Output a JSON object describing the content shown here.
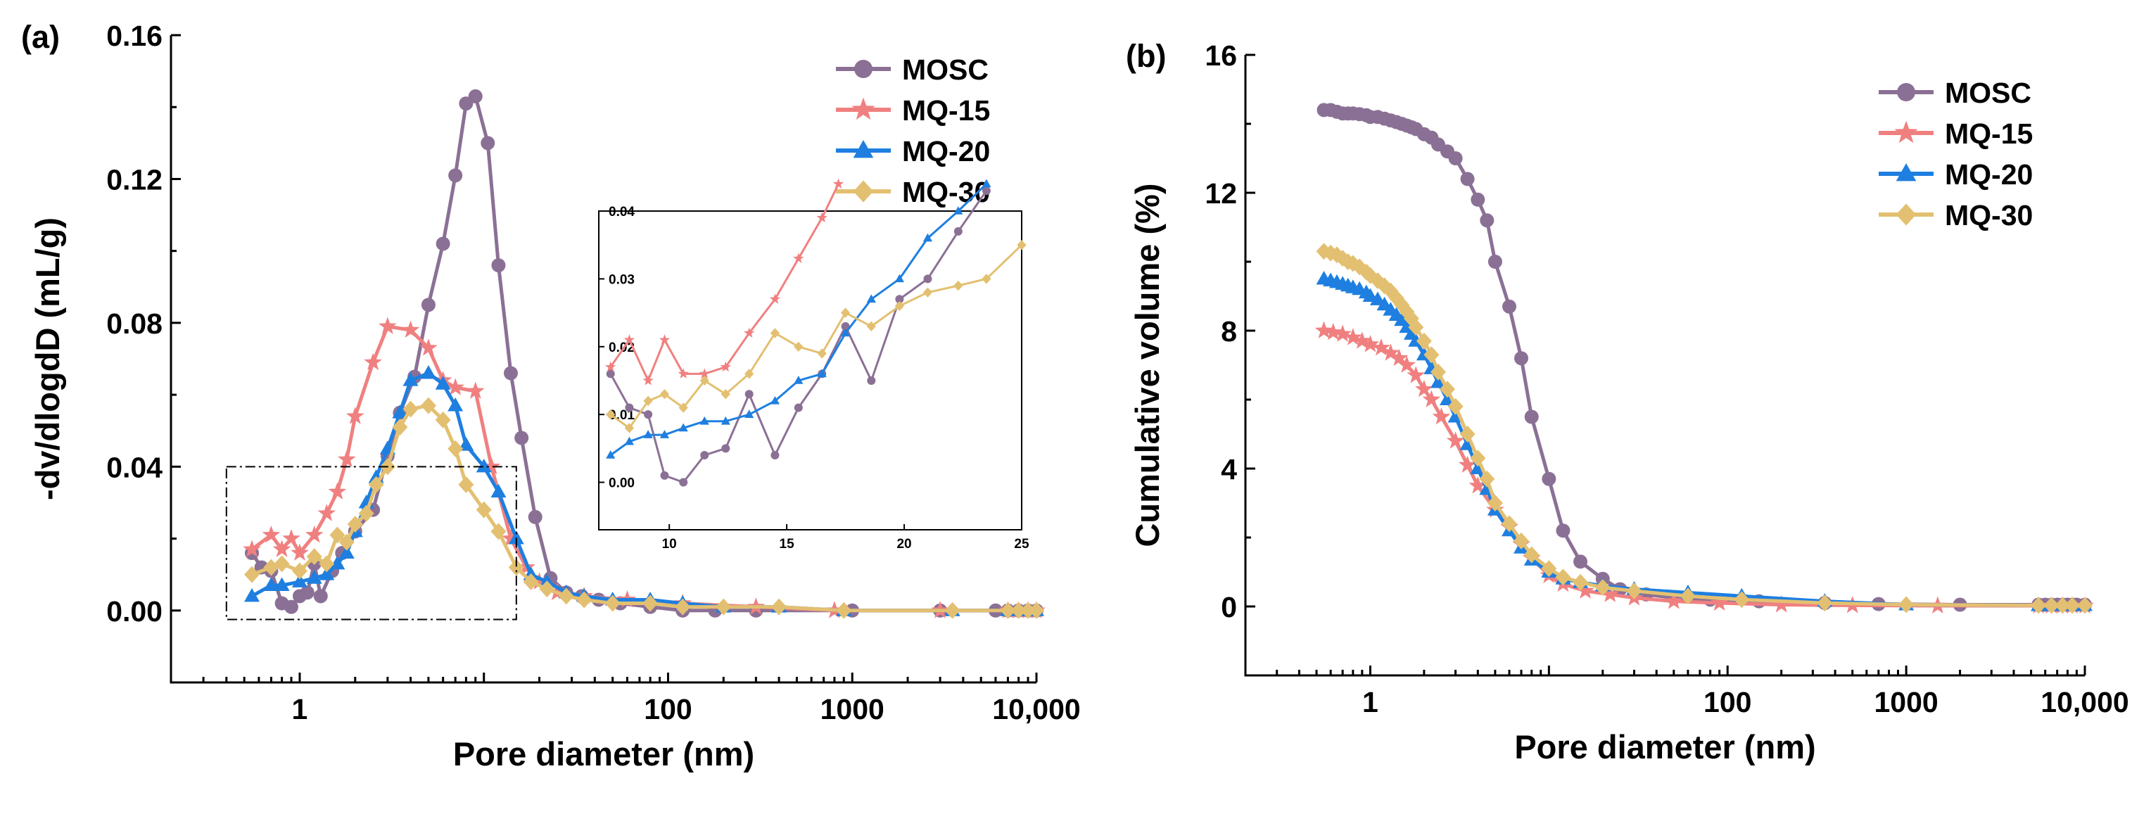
{
  "chart_data": [
    {
      "type": "line",
      "panel_label": "(a)",
      "xlabel": "Pore diameter (nm)",
      "ylabel": "-dv/dlogdD (mL/g)",
      "xscale": "log",
      "xlim": [
        0.2,
        10000
      ],
      "ylim": [
        -0.02,
        0.16
      ],
      "xticks": [
        1,
        100,
        1000,
        10000
      ],
      "xtick_labels": [
        "1",
        "100",
        "1000",
        "10,000"
      ],
      "yticks": [
        0.0,
        0.04,
        0.08,
        0.12,
        0.16
      ],
      "ytick_labels": [
        "0.00",
        "0.04",
        "0.08",
        "0.12",
        "0.16"
      ],
      "legend": "top-right",
      "series": [
        {
          "name": "MOSC",
          "color": "#8B7095",
          "marker": "circle",
          "x": [
            0.55,
            0.62,
            0.7,
            0.8,
            0.9,
            1.0,
            1.1,
            1.2,
            1.3,
            1.5,
            1.7,
            2.0,
            2.5,
            3.0,
            3.5,
            4.2,
            5.0,
            6.0,
            7.0,
            8.0,
            9.0,
            10.5,
            12.0,
            14.0,
            16.0,
            19.0,
            23.0,
            28.0,
            34.0,
            42.0,
            55.0,
            80.0,
            120.0,
            180.0,
            300.0,
            1000.0,
            3000.0,
            6000.0,
            7000.0,
            8000.0,
            9000.0,
            10000.0
          ],
          "y": [
            0.016,
            0.012,
            0.011,
            0.002,
            0.001,
            0.004,
            0.005,
            0.013,
            0.004,
            0.011,
            0.016,
            0.022,
            0.028,
            0.043,
            0.055,
            0.065,
            0.085,
            0.102,
            0.121,
            0.141,
            0.143,
            0.13,
            0.096,
            0.066,
            0.048,
            0.026,
            0.009,
            0.005,
            0.004,
            0.003,
            0.002,
            0.001,
            0.0,
            0.0,
            0.0,
            0.0,
            0.0,
            0.0,
            0.0,
            0.0,
            0.0,
            0.0
          ]
        },
        {
          "name": "MQ-15",
          "color": "#F08080",
          "marker": "star",
          "x": [
            0.55,
            0.7,
            0.8,
            0.9,
            1.0,
            1.2,
            1.4,
            1.6,
            1.8,
            2.0,
            2.5,
            3.0,
            4.0,
            5.0,
            6.0,
            7.0,
            9.0,
            11.0,
            14.0,
            17.0,
            20.0,
            25.0,
            35.0,
            60.0,
            120.0,
            300.0,
            800.0,
            3000.0,
            7000.0,
            8000.0,
            9000.0,
            10000.0
          ],
          "y": [
            0.017,
            0.021,
            0.017,
            0.02,
            0.016,
            0.021,
            0.027,
            0.033,
            0.042,
            0.054,
            0.069,
            0.079,
            0.078,
            0.073,
            0.064,
            0.062,
            0.061,
            0.04,
            0.02,
            0.012,
            0.008,
            0.005,
            0.004,
            0.003,
            0.002,
            0.001,
            0.0,
            0.0,
            0.0,
            0.0,
            0.0,
            0.0
          ]
        },
        {
          "name": "MQ-20",
          "color": "#1E7FE0",
          "marker": "triangle",
          "x": [
            0.55,
            0.7,
            0.8,
            1.0,
            1.2,
            1.4,
            1.6,
            1.8,
            2.0,
            2.3,
            2.6,
            3.0,
            3.5,
            4.0,
            5.0,
            6.0,
            7.0,
            8.0,
            10.0,
            12.0,
            15.0,
            18.0,
            22.0,
            28.0,
            35.0,
            50.0,
            80.0,
            120.0,
            200.0,
            400.0,
            900.0,
            3500.0,
            7000.0,
            8000.0,
            9000.0,
            10000.0
          ],
          "y": [
            0.004,
            0.007,
            0.007,
            0.008,
            0.009,
            0.01,
            0.013,
            0.016,
            0.022,
            0.03,
            0.037,
            0.045,
            0.055,
            0.064,
            0.066,
            0.063,
            0.057,
            0.046,
            0.04,
            0.033,
            0.02,
            0.01,
            0.008,
            0.005,
            0.004,
            0.003,
            0.003,
            0.002,
            0.001,
            0.001,
            0.0,
            0.0,
            0.0,
            0.0,
            0.0,
            0.0
          ]
        },
        {
          "name": "MQ-30",
          "color": "#E3C071",
          "marker": "diamond",
          "x": [
            0.55,
            0.7,
            0.8,
            1.0,
            1.2,
            1.4,
            1.6,
            1.8,
            2.0,
            2.3,
            2.6,
            3.0,
            3.5,
            4.0,
            5.0,
            6.0,
            7.0,
            8.0,
            10.0,
            12.0,
            15.0,
            18.0,
            22.0,
            28.0,
            35.0,
            50.0,
            80.0,
            120.0,
            200.0,
            400.0,
            900.0,
            3500.0,
            7000.0,
            8000.0,
            9000.0,
            10000.0
          ],
          "y": [
            0.01,
            0.012,
            0.013,
            0.011,
            0.015,
            0.013,
            0.021,
            0.019,
            0.024,
            0.027,
            0.035,
            0.04,
            0.051,
            0.056,
            0.057,
            0.053,
            0.045,
            0.035,
            0.028,
            0.022,
            0.012,
            0.008,
            0.006,
            0.004,
            0.003,
            0.002,
            0.002,
            0.001,
            0.001,
            0.001,
            0.0,
            0.0,
            0.0,
            0.0,
            0.0,
            0.0
          ]
        }
      ],
      "inset": {
        "xlim": [
          7,
          25
        ],
        "ylim": [
          -0.007,
          0.04
        ],
        "xticks": [
          10,
          15,
          20,
          25
        ],
        "xtick_labels": [
          "10",
          "15",
          "20",
          "25"
        ],
        "yticks": [
          0.0,
          0.01,
          0.02,
          0.03,
          0.04
        ],
        "ytick_labels": [
          "0.00",
          "0.01",
          "0.02",
          "0.03",
          "0.04"
        ],
        "series": [
          {
            "name": "MOSC",
            "x": [
              7.5,
              8.3,
              9.1,
              9.8,
              10.6,
              11.5,
              12.4,
              13.4,
              14.5,
              15.5,
              16.5,
              17.5,
              18.6,
              19.8,
              21.0,
              22.3,
              23.5
            ],
            "y": [
              0.016,
              0.011,
              0.01,
              0.001,
              0.0,
              0.004,
              0.005,
              0.013,
              0.004,
              0.011,
              0.016,
              0.023,
              0.015,
              0.027,
              0.03,
              0.037,
              0.043
            ]
          },
          {
            "name": "MQ-15",
            "x": [
              7.5,
              8.3,
              9.1,
              9.8,
              10.6,
              11.5,
              12.4,
              13.4,
              14.5,
              15.5,
              16.5,
              17.2
            ],
            "y": [
              0.017,
              0.021,
              0.015,
              0.021,
              0.016,
              0.016,
              0.017,
              0.022,
              0.027,
              0.033,
              0.039,
              0.044
            ]
          },
          {
            "name": "MQ-20",
            "x": [
              7.5,
              8.3,
              9.1,
              9.8,
              10.6,
              11.5,
              12.4,
              13.4,
              14.5,
              15.5,
              16.5,
              17.5,
              18.6,
              19.8,
              21.0,
              22.3,
              23.5
            ],
            "y": [
              0.004,
              0.006,
              0.007,
              0.007,
              0.008,
              0.009,
              0.009,
              0.01,
              0.012,
              0.015,
              0.016,
              0.022,
              0.027,
              0.03,
              0.036,
              0.04,
              0.044
            ]
          },
          {
            "name": "MQ-30",
            "x": [
              7.5,
              8.3,
              9.1,
              9.8,
              10.6,
              11.5,
              12.4,
              13.4,
              14.5,
              15.5,
              16.5,
              17.5,
              18.6,
              19.8,
              21.0,
              22.3,
              23.5,
              25.0
            ],
            "y": [
              0.01,
              0.008,
              0.012,
              0.013,
              0.011,
              0.015,
              0.013,
              0.016,
              0.022,
              0.02,
              0.019,
              0.025,
              0.023,
              0.026,
              0.028,
              0.029,
              0.03,
              0.035
            ]
          }
        ]
      }
    },
    {
      "type": "line",
      "panel_label": "(b)",
      "xlabel": "Pore diameter (nm)",
      "ylabel": "Cumulative volume (%)",
      "xscale": "log",
      "xlim": [
        0.2,
        10000
      ],
      "ylim": [
        -2,
        16
      ],
      "xticks": [
        1,
        100,
        1000,
        10000
      ],
      "xtick_labels": [
        "1",
        "100",
        "1000",
        "10,000"
      ],
      "yticks": [
        0,
        4,
        8,
        12,
        16
      ],
      "ytick_labels": [
        "0",
        "4",
        "8",
        "12",
        "16"
      ],
      "legend": "top-right",
      "series": [
        {
          "name": "MOSC",
          "color": "#8B7095",
          "marker": "circle",
          "x": [
            0.55,
            0.6,
            0.65,
            0.7,
            0.75,
            0.8,
            0.87,
            0.95,
            1.0,
            1.1,
            1.2,
            1.3,
            1.4,
            1.5,
            1.6,
            1.7,
            1.8,
            2.0,
            2.2,
            2.4,
            2.7,
            3.0,
            3.5,
            4.0,
            4.5,
            5.0,
            6.0,
            7.0,
            8.0,
            10.0,
            12.0,
            15.0,
            20.0,
            25.0,
            35.0,
            50.0,
            80.0,
            150.0,
            350.0,
            700.0,
            2000.0,
            5500.0,
            6000.0,
            6500.0,
            7000.0,
            7500.0,
            8000.0,
            8500.0,
            9000.0,
            10000.0
          ],
          "y": [
            14.4,
            14.4,
            14.35,
            14.3,
            14.3,
            14.3,
            14.28,
            14.25,
            14.2,
            14.2,
            14.15,
            14.1,
            14.05,
            14.0,
            13.95,
            13.9,
            13.85,
            13.7,
            13.6,
            13.4,
            13.2,
            13.0,
            12.4,
            11.8,
            11.2,
            10.0,
            8.7,
            7.2,
            5.5,
            3.7,
            2.2,
            1.3,
            0.8,
            0.5,
            0.35,
            0.25,
            0.2,
            0.15,
            0.1,
            0.07,
            0.05,
            0.05,
            0.05,
            0.05,
            0.05,
            0.05,
            0.05,
            0.05,
            0.05,
            0.05
          ]
        },
        {
          "name": "MQ-15",
          "color": "#F08080",
          "marker": "star",
          "x": [
            0.55,
            0.62,
            0.7,
            0.8,
            0.9,
            1.0,
            1.15,
            1.3,
            1.45,
            1.6,
            1.8,
            2.0,
            2.2,
            2.5,
            3.0,
            3.5,
            4.0,
            5.0,
            6.0,
            7.0,
            8.0,
            10.0,
            12.0,
            16.0,
            22.0,
            30.0,
            50.0,
            90.0,
            200.0,
            500.0,
            1500.0,
            5500.0,
            6500.0,
            7500.0,
            8500.0,
            10000.0
          ],
          "y": [
            8.0,
            7.95,
            7.9,
            7.8,
            7.7,
            7.6,
            7.5,
            7.35,
            7.2,
            7.0,
            6.7,
            6.3,
            6.0,
            5.5,
            4.8,
            4.1,
            3.5,
            2.8,
            2.3,
            1.8,
            1.4,
            0.9,
            0.65,
            0.45,
            0.35,
            0.25,
            0.15,
            0.1,
            0.05,
            0.03,
            0.02,
            0.02,
            0.02,
            0.02,
            0.02,
            0.02
          ]
        },
        {
          "name": "MQ-20",
          "color": "#1E7FE0",
          "marker": "triangle",
          "x": [
            0.55,
            0.6,
            0.65,
            0.7,
            0.75,
            0.8,
            0.87,
            0.95,
            1.0,
            1.1,
            1.2,
            1.3,
            1.4,
            1.5,
            1.6,
            1.7,
            1.8,
            2.0,
            2.2,
            2.4,
            2.7,
            3.0,
            3.5,
            4.0,
            4.5,
            5.0,
            6.0,
            7.0,
            8.0,
            10.0,
            12.0,
            15.0,
            20.0,
            30.0,
            60.0,
            120.0,
            350.0,
            1000.0,
            5500.0,
            6500.0,
            7500.0,
            8500.0,
            10000.0
          ],
          "y": [
            9.5,
            9.45,
            9.4,
            9.35,
            9.3,
            9.25,
            9.2,
            9.1,
            9.0,
            8.9,
            8.75,
            8.6,
            8.45,
            8.3,
            8.1,
            7.9,
            7.7,
            7.3,
            6.9,
            6.5,
            6.0,
            5.5,
            4.7,
            4.0,
            3.4,
            2.8,
            2.2,
            1.7,
            1.35,
            1.0,
            0.8,
            0.7,
            0.6,
            0.5,
            0.4,
            0.3,
            0.15,
            0.05,
            0.03,
            0.03,
            0.03,
            0.03,
            0.03
          ]
        },
        {
          "name": "MQ-30",
          "color": "#E3C071",
          "marker": "diamond",
          "x": [
            0.55,
            0.6,
            0.65,
            0.7,
            0.75,
            0.8,
            0.87,
            0.95,
            1.0,
            1.1,
            1.2,
            1.3,
            1.4,
            1.5,
            1.6,
            1.7,
            1.8,
            2.0,
            2.2,
            2.4,
            2.7,
            3.0,
            3.5,
            4.0,
            4.5,
            5.0,
            6.0,
            7.0,
            8.0,
            10.0,
            12.0,
            15.0,
            20.0,
            30.0,
            60.0,
            120.0,
            350.0,
            1000.0,
            5500.0,
            6500.0,
            7500.0,
            8500.0,
            10000.0
          ],
          "y": [
            10.3,
            10.25,
            10.2,
            10.1,
            10.0,
            9.95,
            9.85,
            9.7,
            9.6,
            9.45,
            9.3,
            9.15,
            8.95,
            8.75,
            8.55,
            8.35,
            8.1,
            7.7,
            7.3,
            6.8,
            6.3,
            5.8,
            5.0,
            4.3,
            3.7,
            3.0,
            2.4,
            1.9,
            1.5,
            1.1,
            0.85,
            0.7,
            0.55,
            0.45,
            0.3,
            0.2,
            0.1,
            0.05,
            0.03,
            0.03,
            0.03,
            0.03,
            0.03
          ]
        }
      ]
    }
  ]
}
